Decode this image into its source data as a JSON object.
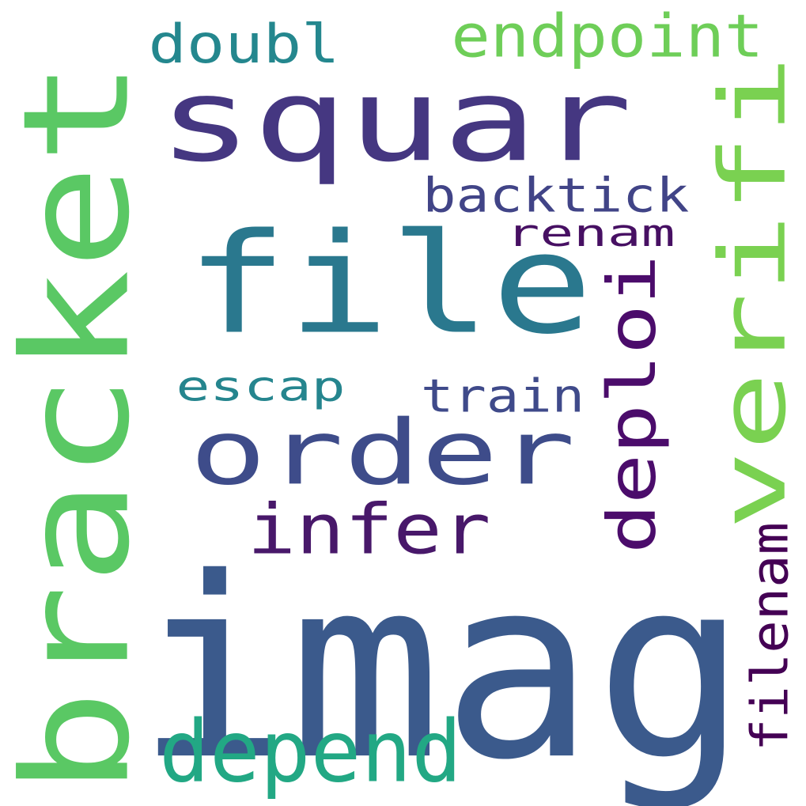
{
  "words": [
    {
      "id": "imag",
      "text": "imag",
      "color": "#3b5a8c",
      "orientation": "horizontal"
    },
    {
      "id": "squar",
      "text": "squar",
      "color": "#453781",
      "orientation": "horizontal"
    },
    {
      "id": "file",
      "text": "file",
      "color": "#2a788e",
      "orientation": "horizontal"
    },
    {
      "id": "bracket",
      "text": "bracket",
      "color": "#5ac864",
      "orientation": "vertical"
    },
    {
      "id": "verifi",
      "text": "verifi",
      "color": "#7ad151",
      "orientation": "vertical"
    },
    {
      "id": "order",
      "text": "order",
      "color": "#3e4c8a",
      "orientation": "horizontal"
    },
    {
      "id": "deploi",
      "text": "deploi",
      "color": "#4b0c6b",
      "orientation": "vertical"
    },
    {
      "id": "infer",
      "text": "infer",
      "color": "#48186a",
      "orientation": "horizontal"
    },
    {
      "id": "depend",
      "text": "depend",
      "color": "#22a884",
      "orientation": "horizontal"
    },
    {
      "id": "endpoint",
      "text": "endpoint",
      "color": "#6ece58",
      "orientation": "horizontal"
    },
    {
      "id": "doubl",
      "text": "doubl",
      "color": "#24878e",
      "orientation": "horizontal"
    },
    {
      "id": "backtick",
      "text": "backtick",
      "color": "#414487",
      "orientation": "horizontal"
    },
    {
      "id": "renam",
      "text": "renam",
      "color": "#471063",
      "orientation": "horizontal"
    },
    {
      "id": "train",
      "text": "train",
      "color": "#3f4a8a",
      "orientation": "horizontal"
    },
    {
      "id": "escap",
      "text": "escap",
      "color": "#25858e",
      "orientation": "horizontal"
    },
    {
      "id": "filenam",
      "text": "filenam",
      "color": "#440154",
      "orientation": "vertical"
    }
  ]
}
